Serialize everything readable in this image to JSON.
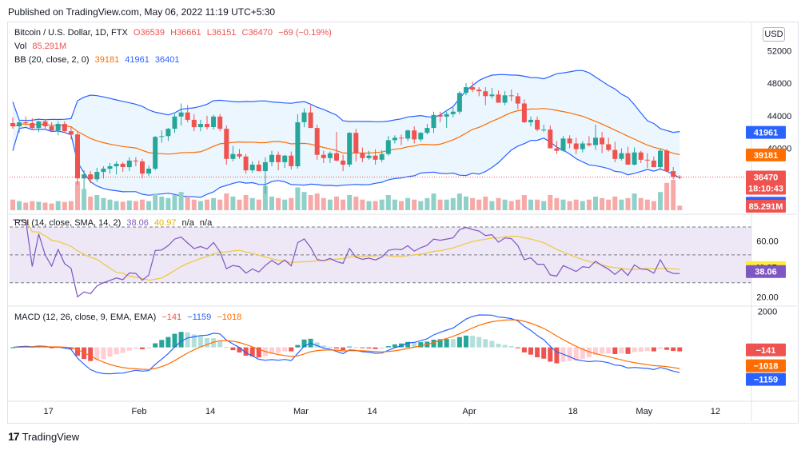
{
  "published": "Published on TradingView.com, May 06, 2022 11:19 UTC+5:30",
  "brand": "TradingView",
  "currency_button": "USD",
  "symbol_line": {
    "title": "Bitcoin / U.S. Dollar, 1D, FTX",
    "open": "O36539",
    "high": "H36661",
    "low": "L36151",
    "close": "C36470",
    "change": "−69 (−0.19%)"
  },
  "vol_line": {
    "label": "Vol",
    "value": "85.291M"
  },
  "bb_line": {
    "label": "BB (20, close, 2, 0)",
    "basis": "39181",
    "upper": "41961",
    "lower": "36401"
  },
  "rsi_line": {
    "label": "RSI (14, close, SMA, 14, 2)",
    "rsi": "38.06",
    "sma": "40.97",
    "na1": "n/a",
    "na2": "n/a"
  },
  "macd_line": {
    "label": "MACD (12, 26, close, 9, EMA, EMA)",
    "hist": "−141",
    "macd": "−1159",
    "signal": "−1018"
  },
  "chart_data": [
    {
      "type": "candlestick",
      "title": "Bitcoin / U.S. Dollar, 1D, FTX",
      "x_tick_labels": [
        "17",
        "Feb",
        "14",
        "Mar",
        "14",
        "Apr",
        "18",
        "May",
        "12"
      ],
      "y_tick_labels": [
        "52000",
        "48000",
        "44000",
        "40000"
      ],
      "ylim": [
        32500,
        53500
      ],
      "grid": false,
      "candles_ohlc_approx": [
        [
          43100,
          43800,
          42400,
          42700
        ],
        [
          42700,
          43500,
          41900,
          43200
        ],
        [
          43200,
          43900,
          42800,
          43100
        ],
        [
          43100,
          43700,
          42300,
          42500
        ],
        [
          42500,
          43400,
          42000,
          43300
        ],
        [
          43300,
          43600,
          42400,
          42700
        ],
        [
          42700,
          43200,
          42000,
          42200
        ],
        [
          42200,
          43300,
          41600,
          43000
        ],
        [
          43000,
          43300,
          41900,
          42100
        ],
        [
          42100,
          42600,
          41100,
          41700
        ],
        [
          41700,
          42000,
          35500,
          36300
        ],
        [
          36300,
          37300,
          35000,
          36800
        ],
        [
          36800,
          37200,
          35700,
          36200
        ],
        [
          36200,
          37600,
          35900,
          37100
        ],
        [
          37100,
          37800,
          36300,
          37500
        ],
        [
          37500,
          38200,
          36900,
          37800
        ],
        [
          37800,
          38400,
          36800,
          38100
        ],
        [
          38100,
          38300,
          37100,
          37700
        ],
        [
          37700,
          38900,
          37200,
          38500
        ],
        [
          38500,
          38900,
          37800,
          38400
        ],
        [
          38400,
          38700,
          36300,
          36900
        ],
        [
          36900,
          37900,
          36600,
          37500
        ],
        [
          37500,
          41500,
          37300,
          41400
        ],
        [
          41400,
          42200,
          40700,
          41500
        ],
        [
          41500,
          42500,
          40900,
          42400
        ],
        [
          42400,
          44200,
          41900,
          43900
        ],
        [
          43900,
          45500,
          42800,
          44400
        ],
        [
          44400,
          45300,
          43200,
          43500
        ],
        [
          43500,
          44200,
          42100,
          42600
        ],
        [
          42600,
          43500,
          42100,
          43000
        ],
        [
          43000,
          44000,
          42300,
          42600
        ],
        [
          42600,
          44100,
          42300,
          43900
        ],
        [
          43900,
          44200,
          42100,
          42400
        ],
        [
          42400,
          42800,
          38000,
          38700
        ],
        [
          38700,
          40300,
          38400,
          39300
        ],
        [
          39300,
          39900,
          38700,
          39000
        ],
        [
          39000,
          39300,
          36900,
          37300
        ],
        [
          37300,
          38400,
          37000,
          38000
        ],
        [
          38000,
          38500,
          37500,
          37200
        ],
        [
          37200,
          38900,
          34400,
          38300
        ],
        [
          38300,
          39700,
          37800,
          39200
        ],
        [
          39200,
          39600,
          37300,
          38300
        ],
        [
          38300,
          39200,
          37600,
          39100
        ],
        [
          39100,
          39600,
          37400,
          37800
        ],
        [
          37800,
          44200,
          37500,
          43200
        ],
        [
          43200,
          44900,
          42600,
          44400
        ],
        [
          44400,
          45300,
          43200,
          42500
        ],
        [
          42500,
          42900,
          38600,
          39200
        ],
        [
          39200,
          39700,
          38200,
          38800
        ],
        [
          38800,
          39600,
          38200,
          39400
        ],
        [
          39400,
          42000,
          38400,
          38500
        ],
        [
          38500,
          39200,
          37200,
          38000
        ],
        [
          38000,
          42000,
          37700,
          41900
        ],
        [
          41900,
          42400,
          38400,
          39400
        ],
        [
          39400,
          40100,
          38300,
          38800
        ],
        [
          38800,
          39700,
          38600,
          39100
        ],
        [
          39100,
          39900,
          38000,
          38600
        ],
        [
          38600,
          39800,
          38300,
          39300
        ],
        [
          39300,
          41500,
          39100,
          41000
        ],
        [
          41000,
          41600,
          40600,
          41300
        ],
        [
          41300,
          41700,
          40400,
          41200
        ],
        [
          41200,
          42300,
          40900,
          42200
        ],
        [
          42200,
          42700,
          40600,
          41100
        ],
        [
          41100,
          42000,
          40800,
          41900
        ],
        [
          41900,
          43000,
          41700,
          42500
        ],
        [
          42500,
          44500,
          41900,
          44100
        ],
        [
          44100,
          44500,
          43200,
          43900
        ],
        [
          43900,
          44500,
          42500,
          44200
        ],
        [
          44200,
          45000,
          43800,
          44500
        ],
        [
          44500,
          47000,
          44200,
          46800
        ],
        [
          46800,
          48000,
          46500,
          47500
        ],
        [
          47500,
          48200,
          46900,
          47200
        ],
        [
          47200,
          47500,
          46400,
          47000
        ],
        [
          47000,
          47500,
          45300,
          46400
        ],
        [
          46400,
          47400,
          46100,
          46600
        ],
        [
          46600,
          47100,
          45700,
          45600
        ],
        [
          45600,
          47000,
          45300,
          46500
        ],
        [
          46500,
          47200,
          45800,
          46400
        ],
        [
          46400,
          46800,
          44800,
          45500
        ],
        [
          45500,
          46000,
          43100,
          43200
        ],
        [
          43200,
          43900,
          42700,
          43500
        ],
        [
          43500,
          43900,
          42100,
          42300
        ],
        [
          42300,
          42900,
          42000,
          42300
        ],
        [
          42300,
          42800,
          40000,
          40000
        ],
        [
          40000,
          40900,
          39300,
          39700
        ],
        [
          39700,
          41500,
          39600,
          41200
        ],
        [
          41200,
          41600,
          40000,
          40600
        ],
        [
          40600,
          41300,
          39300,
          39900
        ],
        [
          39900,
          40900,
          39500,
          40600
        ],
        [
          40600,
          41500,
          40200,
          40400
        ],
        [
          40400,
          42900,
          39800,
          41300
        ],
        [
          41300,
          42000,
          39400,
          40500
        ],
        [
          40500,
          41300,
          39600,
          39800
        ],
        [
          39800,
          40800,
          38300,
          38700
        ],
        [
          38700,
          40000,
          38500,
          39400
        ],
        [
          39400,
          40200,
          38000,
          38000
        ],
        [
          38000,
          40100,
          37900,
          39500
        ],
        [
          39500,
          39700,
          38200,
          38600
        ],
        [
          38600,
          39400,
          37600,
          38500
        ],
        [
          38500,
          39000,
          37800,
          37700
        ],
        [
          37700,
          40000,
          37500,
          39700
        ],
        [
          39700,
          39900,
          37300,
          37200
        ],
        [
          37200,
          37700,
          36200,
          36500
        ],
        [
          36500,
          36700,
          36200,
          36470
        ]
      ],
      "bollinger_bands": {
        "basis_last": 39181,
        "upper_last": 41961,
        "lower_last": 36401
      },
      "last_price": 36470,
      "countdown": "18:10:43"
    },
    {
      "type": "bar",
      "title": "Vol",
      "last_value": "85.291M",
      "values_relative": [
        0.35,
        0.3,
        0.25,
        0.3,
        0.28,
        0.25,
        0.22,
        0.3,
        0.27,
        0.3,
        0.95,
        0.7,
        0.45,
        0.5,
        0.4,
        0.35,
        0.3,
        0.28,
        0.32,
        0.3,
        0.35,
        0.3,
        0.55,
        0.45,
        0.4,
        0.5,
        0.6,
        0.45,
        0.35,
        0.3,
        0.35,
        0.4,
        0.35,
        0.55,
        0.45,
        0.35,
        0.5,
        0.4,
        0.35,
        0.8,
        0.45,
        0.4,
        0.35,
        0.4,
        0.75,
        0.6,
        0.5,
        0.55,
        0.4,
        0.35,
        0.45,
        0.35,
        0.5,
        0.45,
        0.35,
        0.3,
        0.3,
        0.35,
        0.5,
        0.35,
        0.3,
        0.4,
        0.35,
        0.3,
        0.4,
        0.55,
        0.35,
        0.35,
        0.4,
        0.55,
        0.45,
        0.4,
        0.35,
        0.45,
        0.3,
        0.4,
        0.35,
        0.3,
        0.35,
        0.5,
        0.35,
        0.35,
        0.3,
        0.5,
        0.4,
        0.35,
        0.3,
        0.35,
        0.3,
        0.35,
        0.45,
        0.4,
        0.35,
        0.45,
        0.35,
        0.4,
        0.55,
        0.4,
        0.35,
        0.3,
        0.6,
        0.9,
        1.0,
        0.15
      ]
    },
    {
      "type": "line",
      "title": "RSI (14, close, SMA, 14, 2)",
      "y_tick_labels": [
        "60.00",
        "20.00"
      ],
      "bands": [
        70,
        50,
        30
      ],
      "ylim": [
        15,
        78
      ],
      "rsi_last": 38.06,
      "sma_last": 40.97
    },
    {
      "type": "bar",
      "title": "MACD (12, 26, close, 9, EMA, EMA)",
      "y_tick_labels": [
        "2000"
      ],
      "ylim": [
        -2900,
        2200
      ],
      "hist_last": -141,
      "macd_last": -1159,
      "signal_last": -1018
    }
  ],
  "price_labels": {
    "upper": "41961",
    "basis": "39181",
    "price": "36470",
    "countdown": "18:10:43",
    "lower": "36401",
    "vol": "85.291M",
    "rsi_sma": "40.97",
    "rsi": "38.06",
    "hist": "−141",
    "signal": "−1018",
    "macd": "−1159"
  },
  "colors": {
    "up": "#26a69a",
    "down": "#ef5350",
    "up_vol": "#8fd1c9",
    "down_vol": "#f7a9a7",
    "bb_line": "#2962ff",
    "bb_basis": "#ff6d00",
    "bb_fill": "#e3f2fd",
    "rsi": "#7e57c2",
    "rsi_sma": "#f0c93a",
    "rsi_band": "#ede7f6",
    "macd": "#2962ff",
    "signal": "#ff6d00"
  }
}
